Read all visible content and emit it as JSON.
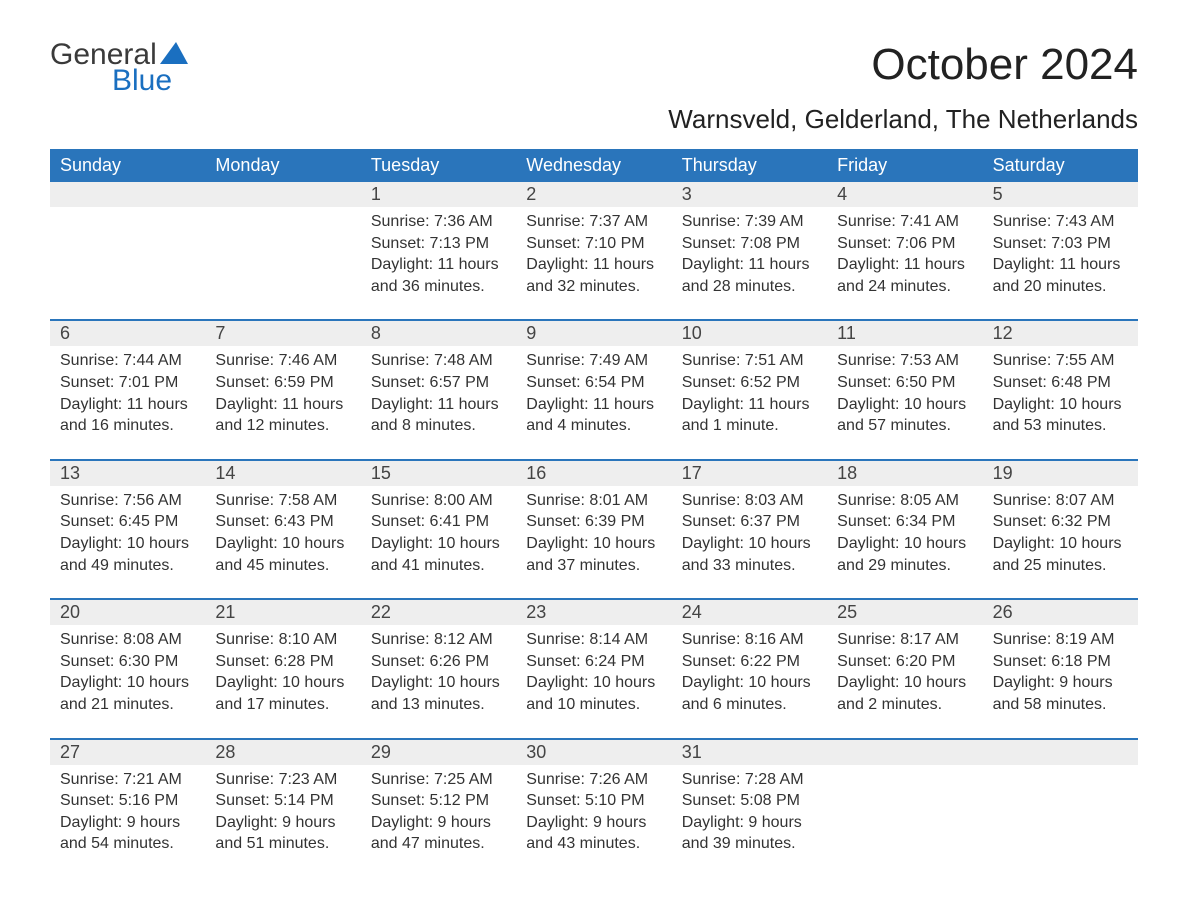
{
  "logo": {
    "word1": "General",
    "word2": "Blue"
  },
  "title": "October 2024",
  "location": "Warnsveld, Gelderland, The Netherlands",
  "colors": {
    "header_bg": "#2a75bb",
    "header_text": "#ffffff",
    "daynum_bg": "#eeeeee",
    "body_text": "#333333",
    "accent": "#1a6fc0"
  },
  "weekdays": [
    "Sunday",
    "Monday",
    "Tuesday",
    "Wednesday",
    "Thursday",
    "Friday",
    "Saturday"
  ],
  "weeks": [
    [
      {
        "n": "",
        "sunrise": "",
        "sunset": "",
        "daylight": ""
      },
      {
        "n": "",
        "sunrise": "",
        "sunset": "",
        "daylight": ""
      },
      {
        "n": "1",
        "sunrise": "Sunrise: 7:36 AM",
        "sunset": "Sunset: 7:13 PM",
        "daylight": "Daylight: 11 hours and 36 minutes."
      },
      {
        "n": "2",
        "sunrise": "Sunrise: 7:37 AM",
        "sunset": "Sunset: 7:10 PM",
        "daylight": "Daylight: 11 hours and 32 minutes."
      },
      {
        "n": "3",
        "sunrise": "Sunrise: 7:39 AM",
        "sunset": "Sunset: 7:08 PM",
        "daylight": "Daylight: 11 hours and 28 minutes."
      },
      {
        "n": "4",
        "sunrise": "Sunrise: 7:41 AM",
        "sunset": "Sunset: 7:06 PM",
        "daylight": "Daylight: 11 hours and 24 minutes."
      },
      {
        "n": "5",
        "sunrise": "Sunrise: 7:43 AM",
        "sunset": "Sunset: 7:03 PM",
        "daylight": "Daylight: 11 hours and 20 minutes."
      }
    ],
    [
      {
        "n": "6",
        "sunrise": "Sunrise: 7:44 AM",
        "sunset": "Sunset: 7:01 PM",
        "daylight": "Daylight: 11 hours and 16 minutes."
      },
      {
        "n": "7",
        "sunrise": "Sunrise: 7:46 AM",
        "sunset": "Sunset: 6:59 PM",
        "daylight": "Daylight: 11 hours and 12 minutes."
      },
      {
        "n": "8",
        "sunrise": "Sunrise: 7:48 AM",
        "sunset": "Sunset: 6:57 PM",
        "daylight": "Daylight: 11 hours and 8 minutes."
      },
      {
        "n": "9",
        "sunrise": "Sunrise: 7:49 AM",
        "sunset": "Sunset: 6:54 PM",
        "daylight": "Daylight: 11 hours and 4 minutes."
      },
      {
        "n": "10",
        "sunrise": "Sunrise: 7:51 AM",
        "sunset": "Sunset: 6:52 PM",
        "daylight": "Daylight: 11 hours and 1 minute."
      },
      {
        "n": "11",
        "sunrise": "Sunrise: 7:53 AM",
        "sunset": "Sunset: 6:50 PM",
        "daylight": "Daylight: 10 hours and 57 minutes."
      },
      {
        "n": "12",
        "sunrise": "Sunrise: 7:55 AM",
        "sunset": "Sunset: 6:48 PM",
        "daylight": "Daylight: 10 hours and 53 minutes."
      }
    ],
    [
      {
        "n": "13",
        "sunrise": "Sunrise: 7:56 AM",
        "sunset": "Sunset: 6:45 PM",
        "daylight": "Daylight: 10 hours and 49 minutes."
      },
      {
        "n": "14",
        "sunrise": "Sunrise: 7:58 AM",
        "sunset": "Sunset: 6:43 PM",
        "daylight": "Daylight: 10 hours and 45 minutes."
      },
      {
        "n": "15",
        "sunrise": "Sunrise: 8:00 AM",
        "sunset": "Sunset: 6:41 PM",
        "daylight": "Daylight: 10 hours and 41 minutes."
      },
      {
        "n": "16",
        "sunrise": "Sunrise: 8:01 AM",
        "sunset": "Sunset: 6:39 PM",
        "daylight": "Daylight: 10 hours and 37 minutes."
      },
      {
        "n": "17",
        "sunrise": "Sunrise: 8:03 AM",
        "sunset": "Sunset: 6:37 PM",
        "daylight": "Daylight: 10 hours and 33 minutes."
      },
      {
        "n": "18",
        "sunrise": "Sunrise: 8:05 AM",
        "sunset": "Sunset: 6:34 PM",
        "daylight": "Daylight: 10 hours and 29 minutes."
      },
      {
        "n": "19",
        "sunrise": "Sunrise: 8:07 AM",
        "sunset": "Sunset: 6:32 PM",
        "daylight": "Daylight: 10 hours and 25 minutes."
      }
    ],
    [
      {
        "n": "20",
        "sunrise": "Sunrise: 8:08 AM",
        "sunset": "Sunset: 6:30 PM",
        "daylight": "Daylight: 10 hours and 21 minutes."
      },
      {
        "n": "21",
        "sunrise": "Sunrise: 8:10 AM",
        "sunset": "Sunset: 6:28 PM",
        "daylight": "Daylight: 10 hours and 17 minutes."
      },
      {
        "n": "22",
        "sunrise": "Sunrise: 8:12 AM",
        "sunset": "Sunset: 6:26 PM",
        "daylight": "Daylight: 10 hours and 13 minutes."
      },
      {
        "n": "23",
        "sunrise": "Sunrise: 8:14 AM",
        "sunset": "Sunset: 6:24 PM",
        "daylight": "Daylight: 10 hours and 10 minutes."
      },
      {
        "n": "24",
        "sunrise": "Sunrise: 8:16 AM",
        "sunset": "Sunset: 6:22 PM",
        "daylight": "Daylight: 10 hours and 6 minutes."
      },
      {
        "n": "25",
        "sunrise": "Sunrise: 8:17 AM",
        "sunset": "Sunset: 6:20 PM",
        "daylight": "Daylight: 10 hours and 2 minutes."
      },
      {
        "n": "26",
        "sunrise": "Sunrise: 8:19 AM",
        "sunset": "Sunset: 6:18 PM",
        "daylight": "Daylight: 9 hours and 58 minutes."
      }
    ],
    [
      {
        "n": "27",
        "sunrise": "Sunrise: 7:21 AM",
        "sunset": "Sunset: 5:16 PM",
        "daylight": "Daylight: 9 hours and 54 minutes."
      },
      {
        "n": "28",
        "sunrise": "Sunrise: 7:23 AM",
        "sunset": "Sunset: 5:14 PM",
        "daylight": "Daylight: 9 hours and 51 minutes."
      },
      {
        "n": "29",
        "sunrise": "Sunrise: 7:25 AM",
        "sunset": "Sunset: 5:12 PM",
        "daylight": "Daylight: 9 hours and 47 minutes."
      },
      {
        "n": "30",
        "sunrise": "Sunrise: 7:26 AM",
        "sunset": "Sunset: 5:10 PM",
        "daylight": "Daylight: 9 hours and 43 minutes."
      },
      {
        "n": "31",
        "sunrise": "Sunrise: 7:28 AM",
        "sunset": "Sunset: 5:08 PM",
        "daylight": "Daylight: 9 hours and 39 minutes."
      },
      {
        "n": "",
        "sunrise": "",
        "sunset": "",
        "daylight": ""
      },
      {
        "n": "",
        "sunrise": "",
        "sunset": "",
        "daylight": ""
      }
    ]
  ]
}
